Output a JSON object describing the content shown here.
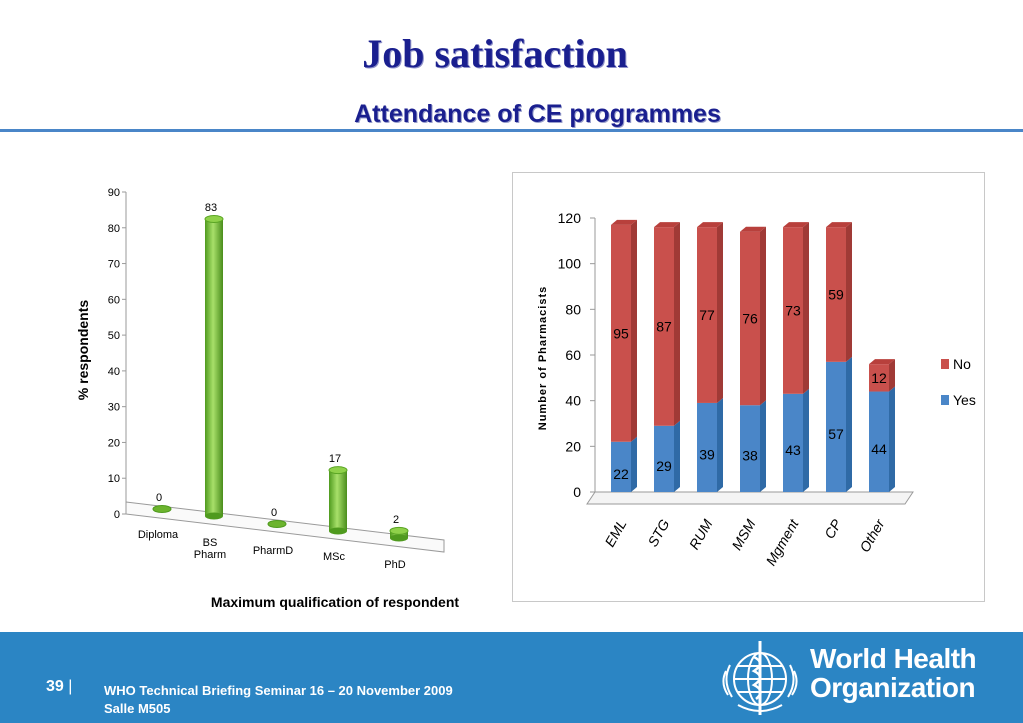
{
  "slide": {
    "title": "Job satisfaction",
    "subtitle": "Attendance of CE programmes"
  },
  "chart_data": [
    {
      "type": "bar",
      "title": "",
      "xlabel": "Maximum qualification of respondent",
      "ylabel": "% respondents",
      "categories": [
        "Diploma",
        "BS Pharm",
        "PharmD",
        "MSc",
        "PhD"
      ],
      "values": [
        0,
        83,
        0,
        17,
        2
      ],
      "yticks": [
        0,
        10,
        20,
        30,
        40,
        50,
        60,
        70,
        80,
        90
      ],
      "ylim": [
        0,
        90
      ],
      "colors": {
        "bar": "#77c43a"
      },
      "grid": false,
      "style": "3d-cylinder"
    },
    {
      "type": "bar",
      "stacked": true,
      "title": "",
      "xlabel": "",
      "ylabel": "Number of Pharmacists",
      "categories": [
        "EML",
        "STG",
        "RUM",
        "MSM",
        "Mgment",
        "CP",
        "Other"
      ],
      "series": [
        {
          "name": "Yes",
          "values": [
            22,
            29,
            39,
            38,
            43,
            57,
            44
          ],
          "color": "#4a86c8"
        },
        {
          "name": "No",
          "values": [
            95,
            87,
            77,
            76,
            73,
            59,
            12
          ],
          "color": "#c9504c"
        }
      ],
      "yticks": [
        0,
        20,
        40,
        60,
        80,
        100,
        120
      ],
      "ylim": [
        0,
        120
      ],
      "legend": "right",
      "grid": false,
      "style": "3d-column"
    }
  ],
  "footer": {
    "page_number": "39",
    "separator": "|",
    "event": "WHO Technical Briefing Seminar 16 – 20 November 2009",
    "room": "Salle M505",
    "org_name_line1": "World Health",
    "org_name_line2": "Organization"
  },
  "colors": {
    "title": "#1a1f8f",
    "footer_bg": "#2b85c4",
    "rule": "#4a86c8"
  }
}
